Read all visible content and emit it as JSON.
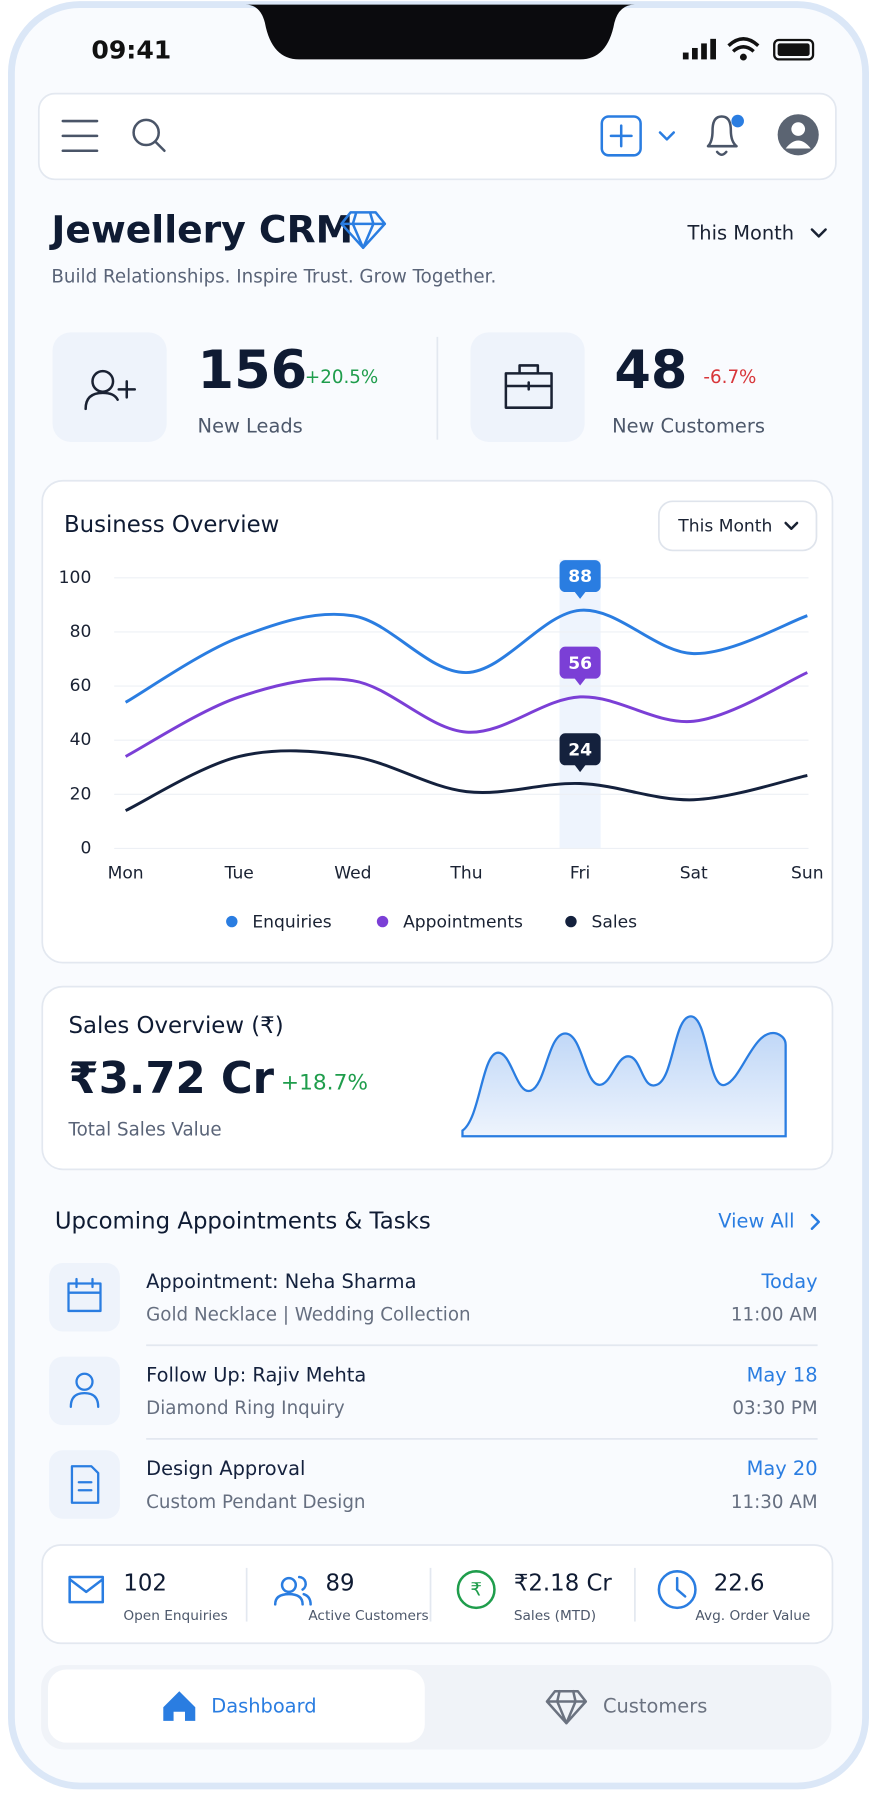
{
  "status_bar": {
    "time": "09:41"
  },
  "header": {
    "title": "Jewellery CRM",
    "subtitle": "Build Relationships. Inspire Trust. Grow Together.",
    "period": "This Month"
  },
  "stats": [
    {
      "value": 156,
      "change": "+20.5%",
      "label": "New Leads"
    },
    {
      "value": 48,
      "change": "-6.7%",
      "label": "New Customers"
    }
  ],
  "business_overview": {
    "title": "Business Overview",
    "period": "This Month",
    "chart": {
      "type": "line",
      "categories": [
        "Mon",
        "Tue",
        "Wed",
        "Thu",
        "Fri",
        "Sat",
        "Sun"
      ],
      "series": [
        {
          "name": "Enquiries",
          "color": "#2a7de1",
          "values": [
            54,
            78,
            86,
            65,
            88,
            72,
            86
          ]
        },
        {
          "name": "Appointments",
          "color": "#7b3fd6",
          "values": [
            34,
            56,
            62,
            43,
            56,
            47,
            65
          ]
        },
        {
          "name": "Sales",
          "color": "#14213d",
          "values": [
            14,
            34,
            34,
            21,
            24,
            18,
            27
          ]
        }
      ],
      "ylim": [
        0,
        100
      ],
      "yticks": [
        0,
        20,
        40,
        60,
        80,
        100
      ],
      "grid": true,
      "legend": "bottom",
      "highlight_index": 4
    }
  },
  "sales_overview": {
    "title": "Sales Overview (₹)",
    "value": "₹3.72 Cr",
    "change": "+18.7%",
    "label": "Total Sales Value"
  },
  "appointments": {
    "title": "Upcoming Appointments & Tasks",
    "link": "View All",
    "items": [
      {
        "title": "Appointment: Neha Sharma",
        "detail": "Gold Necklace | Wedding Collection",
        "date": "Today",
        "time": "11:00 AM"
      },
      {
        "title": "Follow Up: Rajiv Mehta",
        "detail": "Diamond Ring Inquiry",
        "date": "May 18",
        "time": "03:30 PM"
      },
      {
        "title": "Design Approval",
        "detail": "Custom Pendant Design",
        "date": "May 20",
        "time": "11:30 AM"
      }
    ]
  },
  "summary": [
    {
      "value": 102,
      "label": "Open Enquiries"
    },
    {
      "value": 89,
      "label": "Active Customers"
    },
    {
      "value": "₹2.18 Cr",
      "label": "Sales (MTD)"
    },
    {
      "value": 22.6,
      "label": "Avg. Order Value"
    }
  ],
  "nav": [
    "Dashboard",
    "Customers"
  ]
}
